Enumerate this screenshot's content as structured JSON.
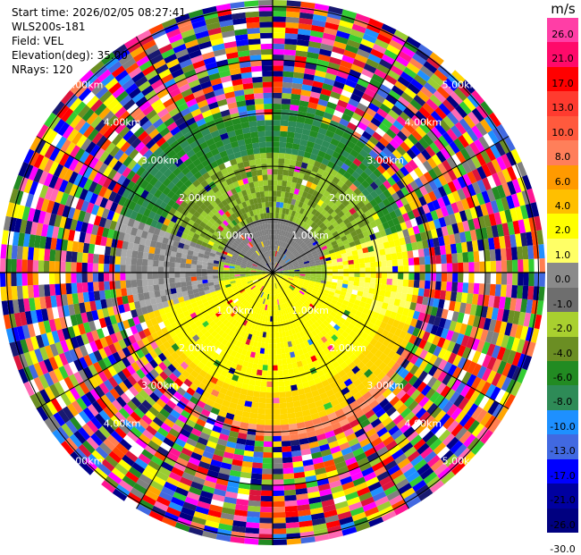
{
  "info": {
    "start_time": "Start time: 2026/02/05 08:27:41",
    "instrument": "WLS200s-181",
    "field": "Field: VEL",
    "elevation": "Elevation(deg): 35.00",
    "nrays": "NRays: 120"
  },
  "range_labels": [
    "1.00km",
    "2.00km",
    "3.00km",
    "4.00km",
    "5.00km"
  ],
  "colorbar": {
    "unit": "m/s",
    "ticks": [
      "26.0",
      "21.0",
      "17.0",
      "13.0",
      "10.0",
      "8.0",
      "6.0",
      "4.0",
      "2.0",
      "1.0",
      "0.0",
      "-1.0",
      "-2.0",
      "-4.0",
      "-6.0",
      "-8.0",
      "-10.0",
      "-13.0",
      "-17.0",
      "-21.0",
      "-26.0",
      "-30.0"
    ],
    "colors": [
      "#ff3ea6",
      "#ff0a6a",
      "#ff0000",
      "#ff3b2f",
      "#ff5a3d",
      "#ff7f5a",
      "#ff9a00",
      "#ffbf00",
      "#ffff00",
      "#ffff66",
      "#8a8a8a",
      "#6e6e6e",
      "#a9d02f",
      "#6b8e23",
      "#228b22",
      "#2e8b57",
      "#1e90ff",
      "#4169e1",
      "#0000ff",
      "#0000a0",
      "#000080",
      "#191970"
    ]
  }
}
